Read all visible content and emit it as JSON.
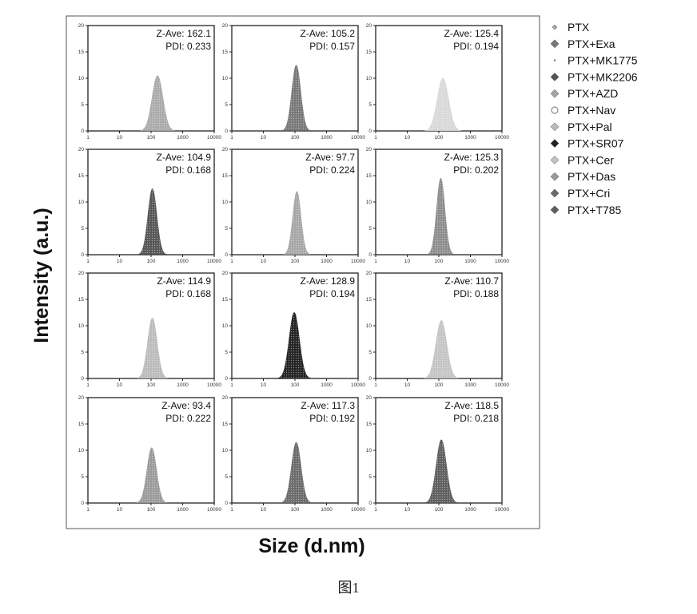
{
  "colors": {
    "axis": "#222222",
    "background": "#ffffff"
  },
  "chart_data": {
    "type": "area",
    "ylabel": "Intensity (a.u.)",
    "xlabel": "Size (d.nm)",
    "x_scale": "log",
    "xlim": [
      1,
      10000
    ],
    "ylim": [
      0,
      20
    ],
    "x_ticks": [
      "1",
      "10",
      "100",
      "1000",
      "10000"
    ],
    "y_ticks": [
      "0",
      "5",
      "10",
      "15",
      "20"
    ],
    "grid": false,
    "legend_position": "right",
    "panels": [
      {
        "series": "PTX",
        "z_ave": "Z-Ave: 162.1",
        "pdi": "PDI: 0.233",
        "peak_size": 160,
        "peak_intensity": 10.5,
        "width_log": 0.17,
        "color": "#aaaaaa"
      },
      {
        "series": "PTX+Exa",
        "z_ave": "Z-Ave: 105.2",
        "pdi": "PDI: 0.157",
        "peak_size": 110,
        "peak_intensity": 12.5,
        "width_log": 0.14,
        "color": "#777777"
      },
      {
        "series": "PTX+MK1775",
        "z_ave": "Z-Ave: 125.4",
        "pdi": "PDI: 0.194",
        "peak_size": 135,
        "peak_intensity": 10,
        "width_log": 0.18,
        "color": "#d8d8d8"
      },
      {
        "series": "PTX+MK2206",
        "z_ave": "Z-Ave: 104.9",
        "pdi": "PDI: 0.168",
        "peak_size": 110,
        "peak_intensity": 12.5,
        "width_log": 0.14,
        "color": "#555555"
      },
      {
        "series": "PTX+AZD",
        "z_ave": "Z-Ave: 97.7",
        "pdi": "PDI: 0.224",
        "peak_size": 115,
        "peak_intensity": 12,
        "width_log": 0.13,
        "color": "#a6a6a6"
      },
      {
        "series": "PTX+Nav",
        "z_ave": "Z-Ave: 125.3",
        "pdi": "PDI: 0.202",
        "peak_size": 115,
        "peak_intensity": 14.5,
        "width_log": 0.13,
        "color": "#8c8c8c"
      },
      {
        "series": "PTX+Pal",
        "z_ave": "Z-Ave: 114.9",
        "pdi": "PDI: 0.168",
        "peak_size": 110,
        "peak_intensity": 11.5,
        "width_log": 0.15,
        "color": "#bbbbbb"
      },
      {
        "series": "PTX+SR07",
        "z_ave": "Z-Ave: 128.9",
        "pdi": "PDI: 0.194",
        "peak_size": 95,
        "peak_intensity": 12.5,
        "width_log": 0.16,
        "color": "#222222"
      },
      {
        "series": "PTX+Cer",
        "z_ave": "Z-Ave: 110.7",
        "pdi": "PDI: 0.188",
        "peak_size": 120,
        "peak_intensity": 11,
        "width_log": 0.17,
        "color": "#c4c4c4"
      },
      {
        "series": "PTX+Das",
        "z_ave": "Z-Ave: 93.4",
        "pdi": "PDI: 0.222",
        "peak_size": 105,
        "peak_intensity": 10.5,
        "width_log": 0.15,
        "color": "#9a9a9a"
      },
      {
        "series": "PTX+Cri",
        "z_ave": "Z-Ave: 117.3",
        "pdi": "PDI: 0.192",
        "peak_size": 110,
        "peak_intensity": 11.5,
        "width_log": 0.15,
        "color": "#6a6a6a"
      },
      {
        "series": "PTX+T785",
        "z_ave": "Z-Ave: 118.5",
        "pdi": "PDI: 0.218",
        "peak_size": 120,
        "peak_intensity": 12,
        "width_log": 0.16,
        "color": "#5e5e5e"
      }
    ]
  },
  "legend": [
    {
      "label": "PTX",
      "marker": "diamond-small",
      "color": "#aaaaaa"
    },
    {
      "label": "PTX+Exa",
      "marker": "diamond",
      "color": "#777777"
    },
    {
      "label": "PTX+MK1775",
      "marker": "dot",
      "color": "#d8d8d8"
    },
    {
      "label": "PTX+MK2206",
      "marker": "diamond",
      "color": "#555555"
    },
    {
      "label": "PTX+AZD",
      "marker": "diamond",
      "color": "#a6a6a6"
    },
    {
      "label": "PTX+Nav",
      "marker": "circle-open",
      "color": "#8c8c8c"
    },
    {
      "label": "PTX+Pal",
      "marker": "diamond",
      "color": "#bbbbbb"
    },
    {
      "label": "PTX+SR07",
      "marker": "diamond",
      "color": "#222222"
    },
    {
      "label": "PTX+Cer",
      "marker": "diamond",
      "color": "#c4c4c4"
    },
    {
      "label": "PTX+Das",
      "marker": "diamond",
      "color": "#9a9a9a"
    },
    {
      "label": "PTX+Cri",
      "marker": "diamond",
      "color": "#6a6a6a"
    },
    {
      "label": "PTX+T785",
      "marker": "diamond",
      "color": "#5e5e5e"
    }
  ],
  "caption": "图1"
}
